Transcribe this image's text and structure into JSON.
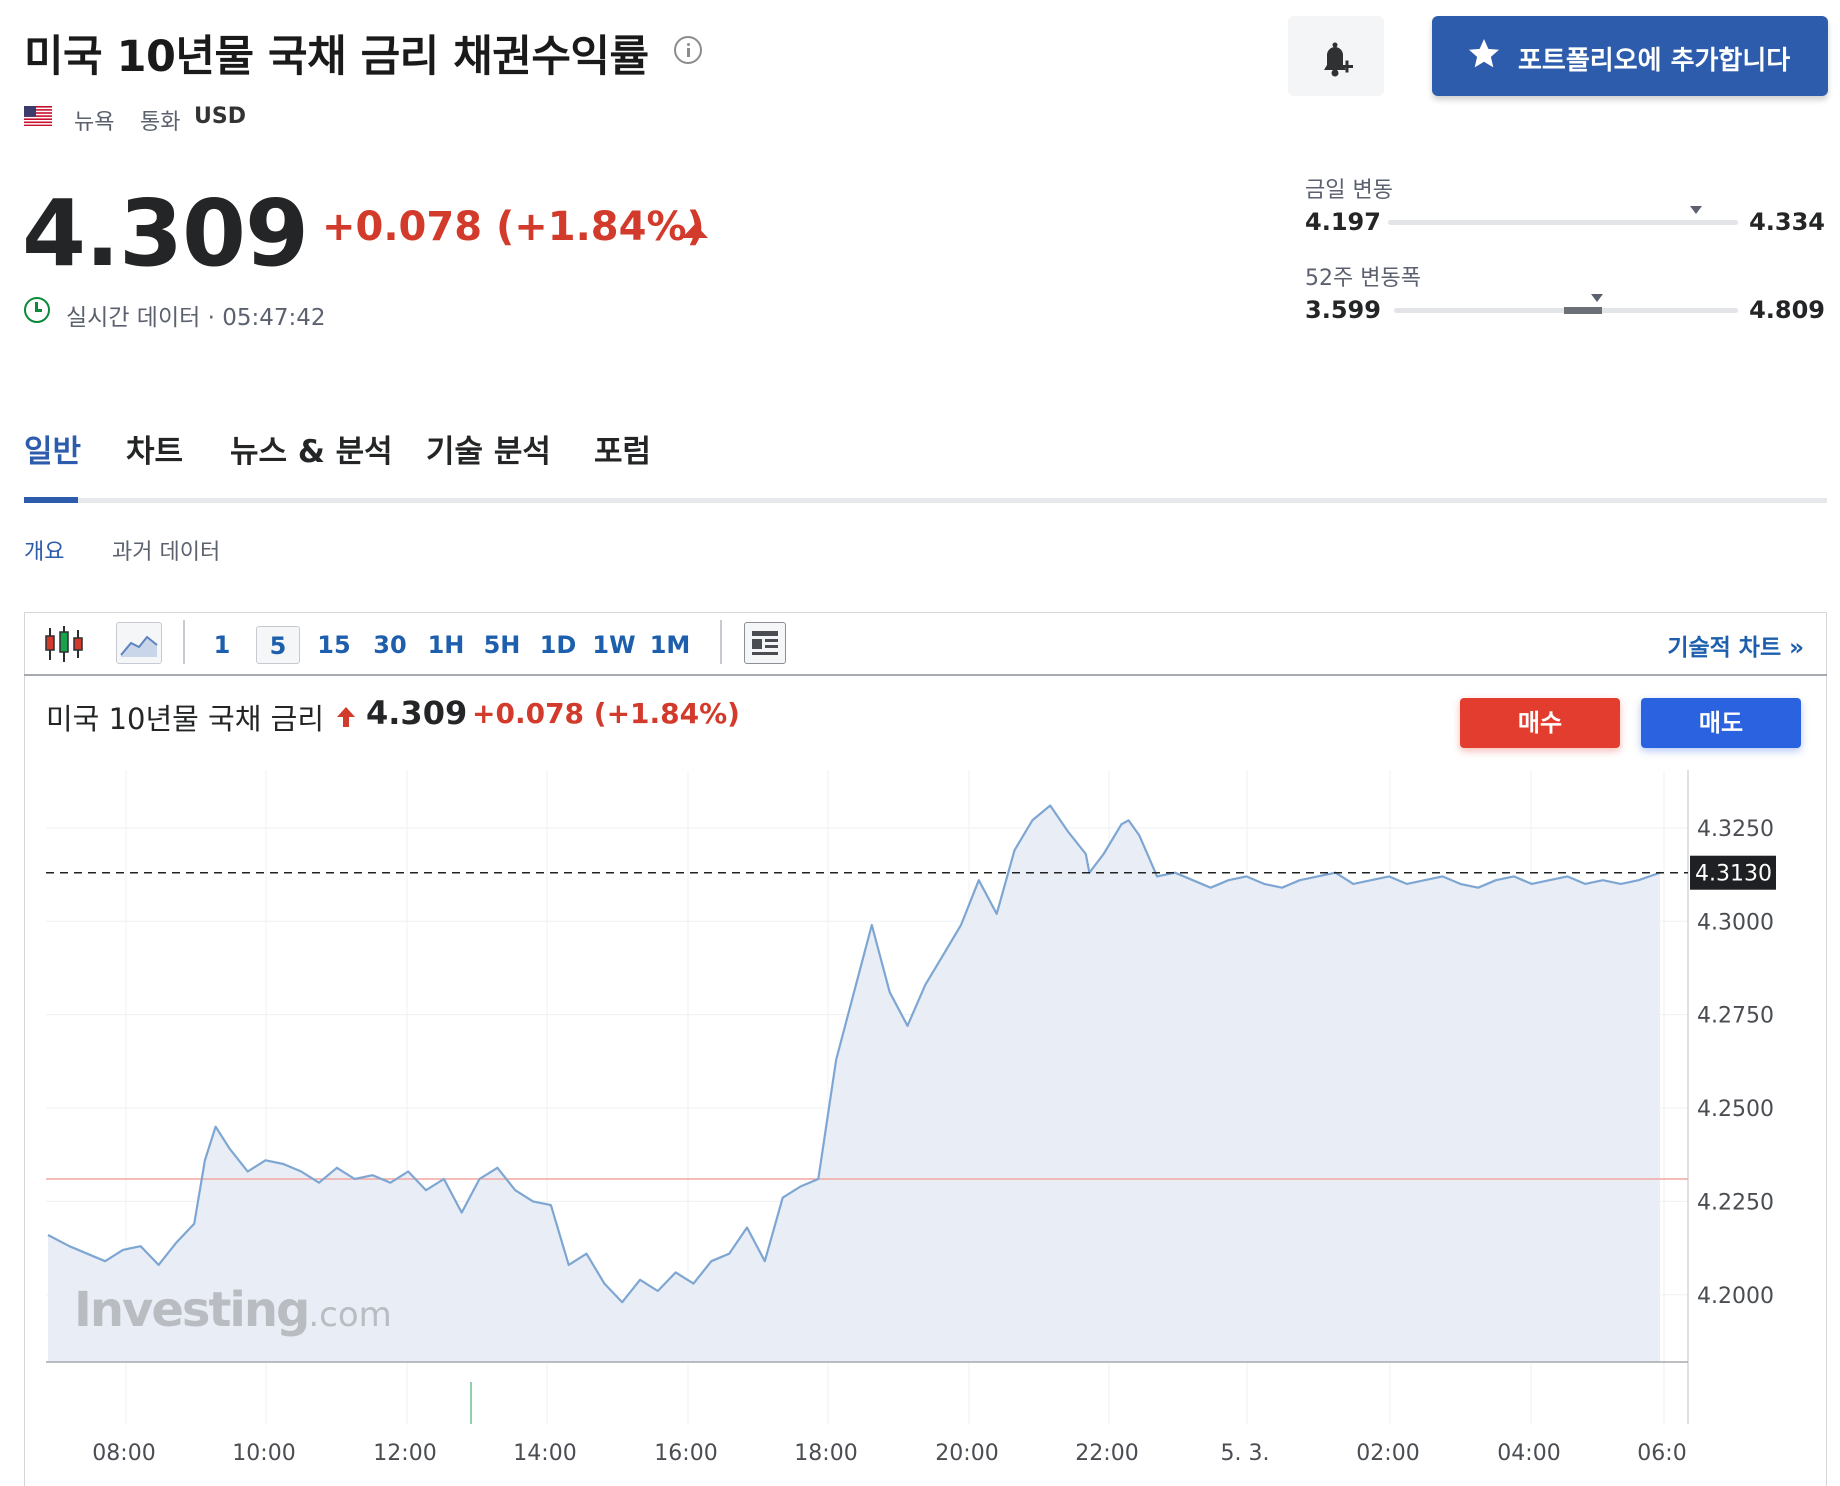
{
  "header": {
    "title": "미국 10년물 국채 금리 채권수익률",
    "city": "뉴욕",
    "currency_label": "통화",
    "currency": "USD",
    "price": "4.309",
    "change": "+0.078 (+1.84%)",
    "realtime": "실시간 데이터 · 05:47:42",
    "portfolio_button": "포트폴리오에 추가합니다"
  },
  "ranges": {
    "day": {
      "label": "금일 변동",
      "low": "4.197",
      "high": "4.334",
      "position": 0.88
    },
    "week52": {
      "label": "52주 변동폭",
      "low": "3.599",
      "high": "4.809",
      "position": 0.59
    }
  },
  "tabs": [
    {
      "label": "일반",
      "active": true
    },
    {
      "label": "차트",
      "active": false
    },
    {
      "label": "뉴스 & 분석",
      "active": false
    },
    {
      "label": "기술 분석",
      "active": false
    },
    {
      "label": "포럼",
      "active": false
    }
  ],
  "subtabs": [
    {
      "label": "개요",
      "active": true
    },
    {
      "label": "과거 데이터",
      "active": false
    }
  ],
  "toolbar": {
    "intervals": [
      "1",
      "5",
      "15",
      "30",
      "1H",
      "5H",
      "1D",
      "1W",
      "1M"
    ],
    "selected": "5",
    "technical_chart": "기술적 차트 »"
  },
  "chart_legend": {
    "name": "미국 10년물 국채 금리",
    "price": "4.309",
    "change": "+0.078 (+1.84%)",
    "buy": "매수",
    "sell": "매도"
  },
  "colors": {
    "accent": "#2c5cab",
    "up": "#d23a2b",
    "buy": "#e23d2e",
    "sell": "#2a62e0",
    "line": "#7ea6d3",
    "area": "#e9eef6"
  },
  "chart_data": {
    "type": "area",
    "x_ticks": [
      "08:00",
      "10:00",
      "12:00",
      "14:00",
      "16:00",
      "18:00",
      "20:00",
      "22:00",
      "5. 3.",
      "02:00",
      "04:00",
      "06:0"
    ],
    "y_ticks": [
      "4.3250",
      "4.3000",
      "4.2750",
      "4.2500",
      "4.2250",
      "4.2000"
    ],
    "ylim": [
      4.182,
      4.3405
    ],
    "current_label": "4.3130",
    "current_value": 4.313,
    "prev_close": 4.231,
    "watermark": "Investing.com",
    "x": [
      6.95,
      7.25,
      7.5,
      7.75,
      8.0,
      8.25,
      8.5,
      8.75,
      9.0,
      9.15,
      9.3,
      9.5,
      9.75,
      10.0,
      10.25,
      10.5,
      10.75,
      11.0,
      11.25,
      11.5,
      11.75,
      12.0,
      12.25,
      12.5,
      12.75,
      13.0,
      13.25,
      13.5,
      13.75,
      14.0,
      14.25,
      14.5,
      14.75,
      15.0,
      15.25,
      15.5,
      15.75,
      16.0,
      16.25,
      16.5,
      16.75,
      17.0,
      17.25,
      17.5,
      17.75,
      18.0,
      18.25,
      18.5,
      18.75,
      19.0,
      19.25,
      19.5,
      19.75,
      20.0,
      20.25,
      20.5,
      20.75,
      21.0,
      21.25,
      21.5,
      21.55,
      21.75,
      22.0,
      22.1,
      22.25,
      22.5,
      22.75,
      23.0,
      23.25,
      23.5,
      23.75,
      24.0,
      24.25,
      24.5,
      24.75,
      25.0,
      25.25,
      25.5,
      25.75,
      26.0,
      26.25,
      26.5,
      26.75,
      27.0,
      27.25,
      27.5,
      27.75,
      28.0,
      28.25,
      28.5,
      28.75,
      29.0,
      29.25,
      29.55
    ],
    "values": [
      4.216,
      4.213,
      4.211,
      4.209,
      4.212,
      4.213,
      4.208,
      4.214,
      4.219,
      4.236,
      4.245,
      4.239,
      4.233,
      4.236,
      4.235,
      4.233,
      4.23,
      4.234,
      4.231,
      4.232,
      4.23,
      4.233,
      4.228,
      4.231,
      4.222,
      4.231,
      4.234,
      4.228,
      4.225,
      4.224,
      4.208,
      4.211,
      4.203,
      4.198,
      4.204,
      4.201,
      4.206,
      4.203,
      4.209,
      4.211,
      4.218,
      4.209,
      4.226,
      4.229,
      4.231,
      4.263,
      4.281,
      4.299,
      4.281,
      4.272,
      4.283,
      4.291,
      4.299,
      4.311,
      4.302,
      4.319,
      4.327,
      4.331,
      4.324,
      4.318,
      4.313,
      4.318,
      4.326,
      4.327,
      4.323,
      4.312,
      4.313,
      4.311,
      4.309,
      4.311,
      4.312,
      4.31,
      4.309,
      4.311,
      4.312,
      4.313,
      4.31,
      4.311,
      4.312,
      4.31,
      4.311,
      4.312,
      4.31,
      4.309,
      4.311,
      4.312,
      4.31,
      4.311,
      4.312,
      4.31,
      4.311,
      4.31,
      4.311,
      4.313
    ]
  }
}
